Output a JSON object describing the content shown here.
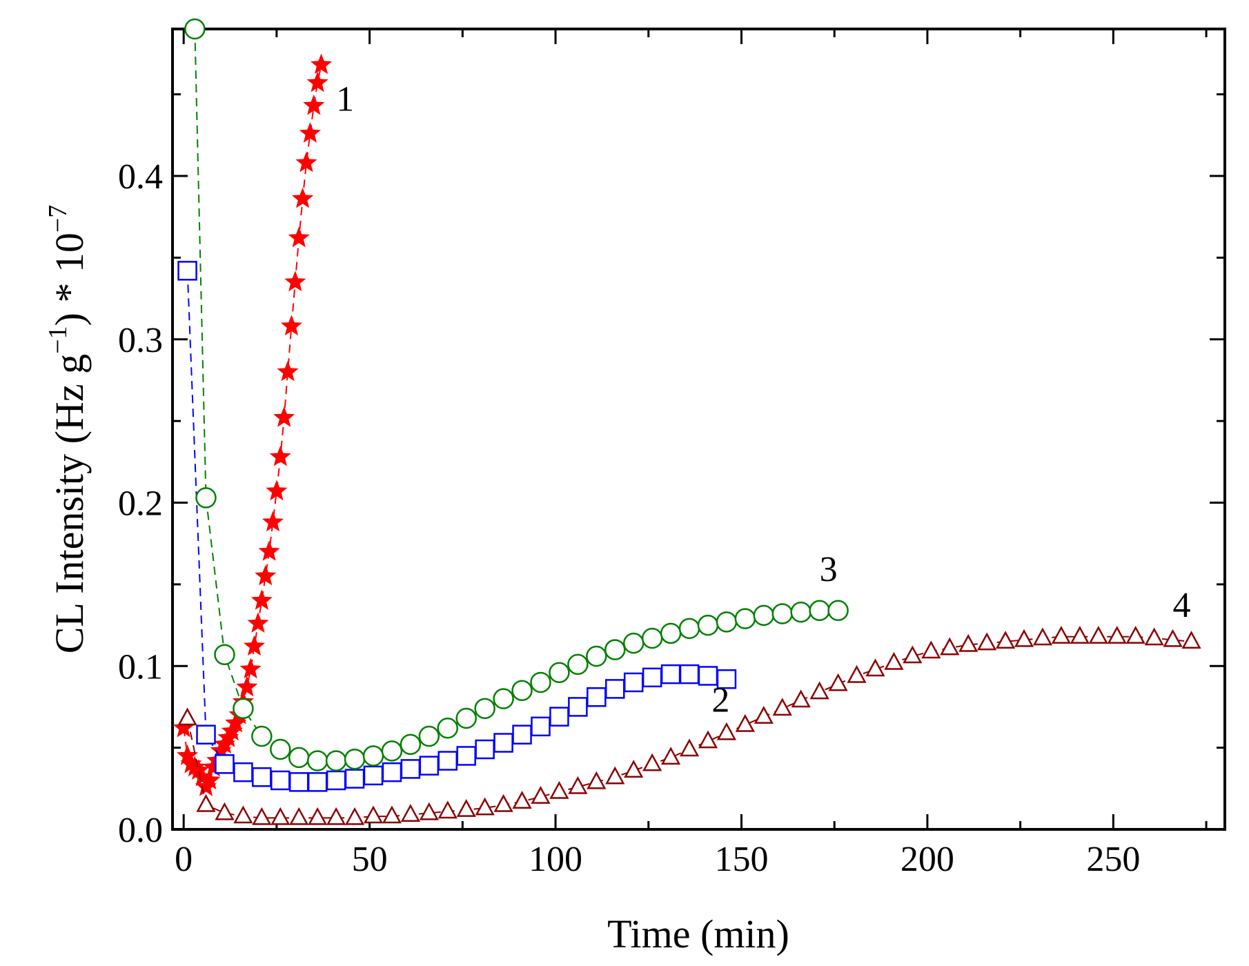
{
  "chart_data": {
    "type": "scatter",
    "title": "",
    "xlabel": "Time (min)",
    "ylabel_parts": [
      "CL Intensity (Hz g",
      "−1",
      ") * 10",
      "−7"
    ],
    "xlim": [
      -3,
      280
    ],
    "ylim": [
      0,
      0.49
    ],
    "xticks": [
      0,
      50,
      100,
      150,
      200,
      250
    ],
    "xtick_labels": [
      "0",
      "50",
      "100",
      "150",
      "200",
      "250"
    ],
    "yticks": [
      0.0,
      0.1,
      0.2,
      0.3,
      0.4
    ],
    "ytick_labels": [
      "0.0",
      "0.1",
      "0.2",
      "0.3",
      "0.4"
    ],
    "series": [
      {
        "name": "1",
        "marker": "star",
        "color": "#ff0000",
        "line": "dashed",
        "label_pos": [
          41,
          0.44
        ],
        "x": [
          0,
          1,
          2,
          3,
          4,
          5,
          6,
          7,
          8,
          9,
          10,
          11,
          12,
          13,
          14,
          15,
          16,
          17,
          18,
          19,
          20,
          21,
          22,
          23,
          24,
          25,
          26,
          27,
          28,
          29,
          30,
          31,
          32,
          33,
          34,
          35,
          36,
          37
        ],
        "y": [
          0.062,
          0.045,
          0.04,
          0.038,
          0.036,
          0.032,
          0.026,
          0.03,
          0.038,
          0.042,
          0.048,
          0.052,
          0.056,
          0.06,
          0.065,
          0.07,
          0.078,
          0.087,
          0.098,
          0.112,
          0.126,
          0.14,
          0.155,
          0.17,
          0.188,
          0.207,
          0.228,
          0.252,
          0.28,
          0.308,
          0.335,
          0.362,
          0.386,
          0.408,
          0.426,
          0.443,
          0.457,
          0.468
        ]
      },
      {
        "name": "2",
        "marker": "square",
        "color": "#0000ff",
        "line": "dashed",
        "label_pos": [
          142,
          0.072
        ],
        "x": [
          1,
          6,
          11,
          16,
          21,
          26,
          31,
          36,
          41,
          46,
          51,
          56,
          61,
          66,
          71,
          76,
          81,
          86,
          91,
          96,
          101,
          106,
          111,
          116,
          121,
          126,
          131,
          136,
          141,
          146
        ],
        "y": [
          0.342,
          0.058,
          0.04,
          0.035,
          0.032,
          0.03,
          0.029,
          0.029,
          0.03,
          0.031,
          0.033,
          0.035,
          0.037,
          0.039,
          0.042,
          0.045,
          0.049,
          0.053,
          0.058,
          0.063,
          0.069,
          0.075,
          0.081,
          0.086,
          0.09,
          0.093,
          0.095,
          0.095,
          0.094,
          0.092
        ]
      },
      {
        "name": "3",
        "marker": "circle",
        "color": "#008000",
        "line": "dashed",
        "label_pos": [
          171,
          0.152
        ],
        "x": [
          3,
          6,
          11,
          16,
          21,
          26,
          31,
          36,
          41,
          46,
          51,
          56,
          61,
          66,
          71,
          76,
          81,
          86,
          91,
          96,
          101,
          106,
          111,
          116,
          121,
          126,
          131,
          136,
          141,
          146,
          151,
          156,
          161,
          166,
          171,
          176
        ],
        "y": [
          0.49,
          0.203,
          0.107,
          0.074,
          0.057,
          0.049,
          0.044,
          0.042,
          0.042,
          0.043,
          0.045,
          0.048,
          0.052,
          0.057,
          0.062,
          0.068,
          0.074,
          0.08,
          0.085,
          0.09,
          0.096,
          0.101,
          0.106,
          0.11,
          0.114,
          0.117,
          0.12,
          0.123,
          0.125,
          0.127,
          0.129,
          0.131,
          0.132,
          0.133,
          0.134,
          0.134
        ]
      },
      {
        "name": "4",
        "marker": "triangle",
        "color": "#8b0000",
        "line": "dashed",
        "label_pos": [
          266,
          0.13
        ],
        "x": [
          1,
          6,
          11,
          16,
          21,
          26,
          31,
          36,
          41,
          46,
          51,
          56,
          61,
          66,
          71,
          76,
          81,
          86,
          91,
          96,
          101,
          106,
          111,
          116,
          121,
          126,
          131,
          136,
          141,
          146,
          151,
          156,
          161,
          166,
          171,
          176,
          181,
          186,
          191,
          196,
          201,
          206,
          211,
          216,
          221,
          226,
          231,
          236,
          241,
          246,
          251,
          256,
          261,
          266,
          271
        ],
        "y": [
          0.068,
          0.015,
          0.01,
          0.008,
          0.007,
          0.007,
          0.007,
          0.007,
          0.007,
          0.007,
          0.008,
          0.008,
          0.009,
          0.01,
          0.011,
          0.012,
          0.013,
          0.015,
          0.017,
          0.02,
          0.023,
          0.026,
          0.029,
          0.032,
          0.036,
          0.04,
          0.044,
          0.049,
          0.054,
          0.059,
          0.064,
          0.069,
          0.074,
          0.079,
          0.084,
          0.089,
          0.094,
          0.098,
          0.102,
          0.106,
          0.109,
          0.111,
          0.113,
          0.114,
          0.115,
          0.116,
          0.117,
          0.118,
          0.118,
          0.118,
          0.118,
          0.118,
          0.117,
          0.116,
          0.115
        ]
      }
    ]
  }
}
